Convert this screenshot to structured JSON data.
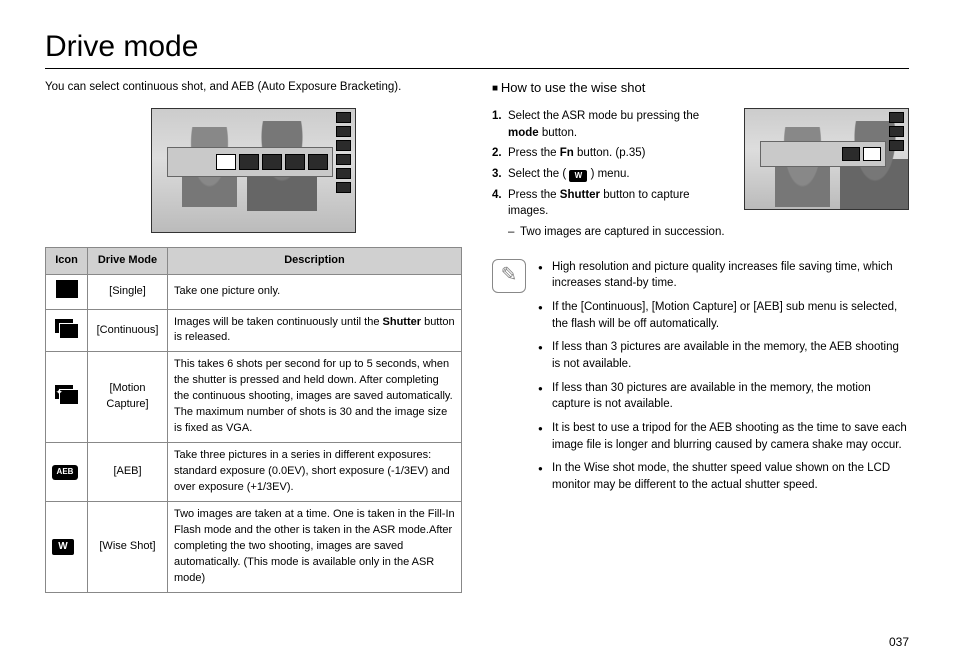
{
  "page": {
    "title": "Drive mode",
    "intro": "You can select continuous shot, and AEB (Auto Exposure Bracketing).",
    "number": "037"
  },
  "table": {
    "headers": {
      "icon": "Icon",
      "mode": "Drive Mode",
      "desc": "Description"
    },
    "rows": [
      {
        "mode": "[Single]",
        "desc": "Take one picture only."
      },
      {
        "mode": "[Continuous]",
        "desc_pre": "Images will be taken continuously until the ",
        "desc_bold": "Shutter",
        "desc_post": " button is released."
      },
      {
        "mode": "[Motion Capture]",
        "desc": "This takes 6 shots per second for up to 5 seconds, when the shutter is pressed and held down. After completing the continuous shooting, images are saved automatically. The maximum number of shots is 30 and the image size is fixed as VGA."
      },
      {
        "mode": "[AEB]",
        "desc": "Take three pictures in a series in different exposures: standard exposure (0.0EV), short exposure (-1/3EV) and over exposure (+1/3EV)."
      },
      {
        "mode": "[Wise Shot]",
        "desc": "Two images are taken at a time. One is taken in the Fill-In Flash mode and the other is taken in the ASR mode.After completing the two shooting, images are saved automatically. (This mode is available only in the ASR mode)"
      }
    ],
    "aeb_label": "AEB",
    "wise_label": "W"
  },
  "wise": {
    "heading": "How to use the wise shot",
    "steps": {
      "s1_pre": "Select the ASR mode bu pressing the ",
      "s1_bold": "mode",
      "s1_post": " button.",
      "s2_pre": "Press the ",
      "s2_bold": "Fn",
      "s2_post": " button. (p.35)",
      "s3_pre": "Select the ( ",
      "s3_icon": "W",
      "s3_post": " ) menu.",
      "s4_pre": "Press the ",
      "s4_bold": "Shutter",
      "s4_post": " button to capture images.",
      "sub": "Two images are captured in succession."
    }
  },
  "notes": [
    "High resolution and picture quality increases file saving time, which increases stand-by time.",
    "If the [Continuous], [Motion Capture] or [AEB] sub menu is selected, the flash will be off automatically.",
    "If less than 3 pictures are available in the memory, the AEB shooting is not available.",
    "If less than 30 pictures are available in the memory, the motion capture is not available.",
    "It is best to use a tripod for the AEB shooting as the time to save each image file is longer and blurring caused by camera shake may occur.",
    "In the Wise shot mode, the shutter speed value shown on the LCD monitor may be different to the actual shutter speed."
  ]
}
